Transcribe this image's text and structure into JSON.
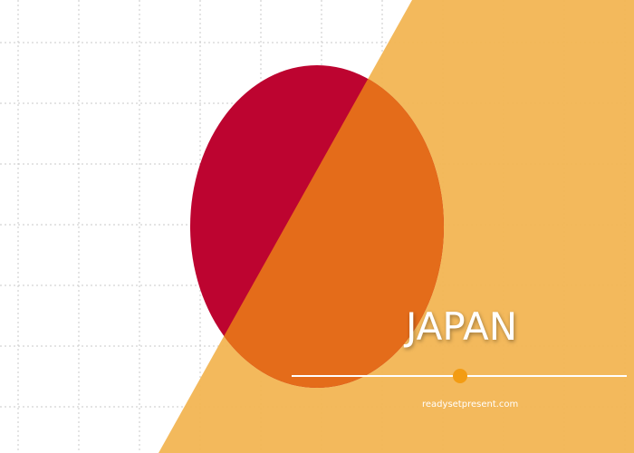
{
  "slide": {
    "title": "JAPAN",
    "credit": "readysetpresent.com"
  },
  "colors": {
    "background": "#ffffff",
    "grid": "#c9c9c9",
    "sun_red": "#bd0430",
    "accent_band": "#f2b553",
    "overlap_orange": "#e46c1a",
    "divider_dot": "#f39c12",
    "text": "#ffffff"
  },
  "icons": {
    "divider_marker": "circle-dot-icon"
  }
}
